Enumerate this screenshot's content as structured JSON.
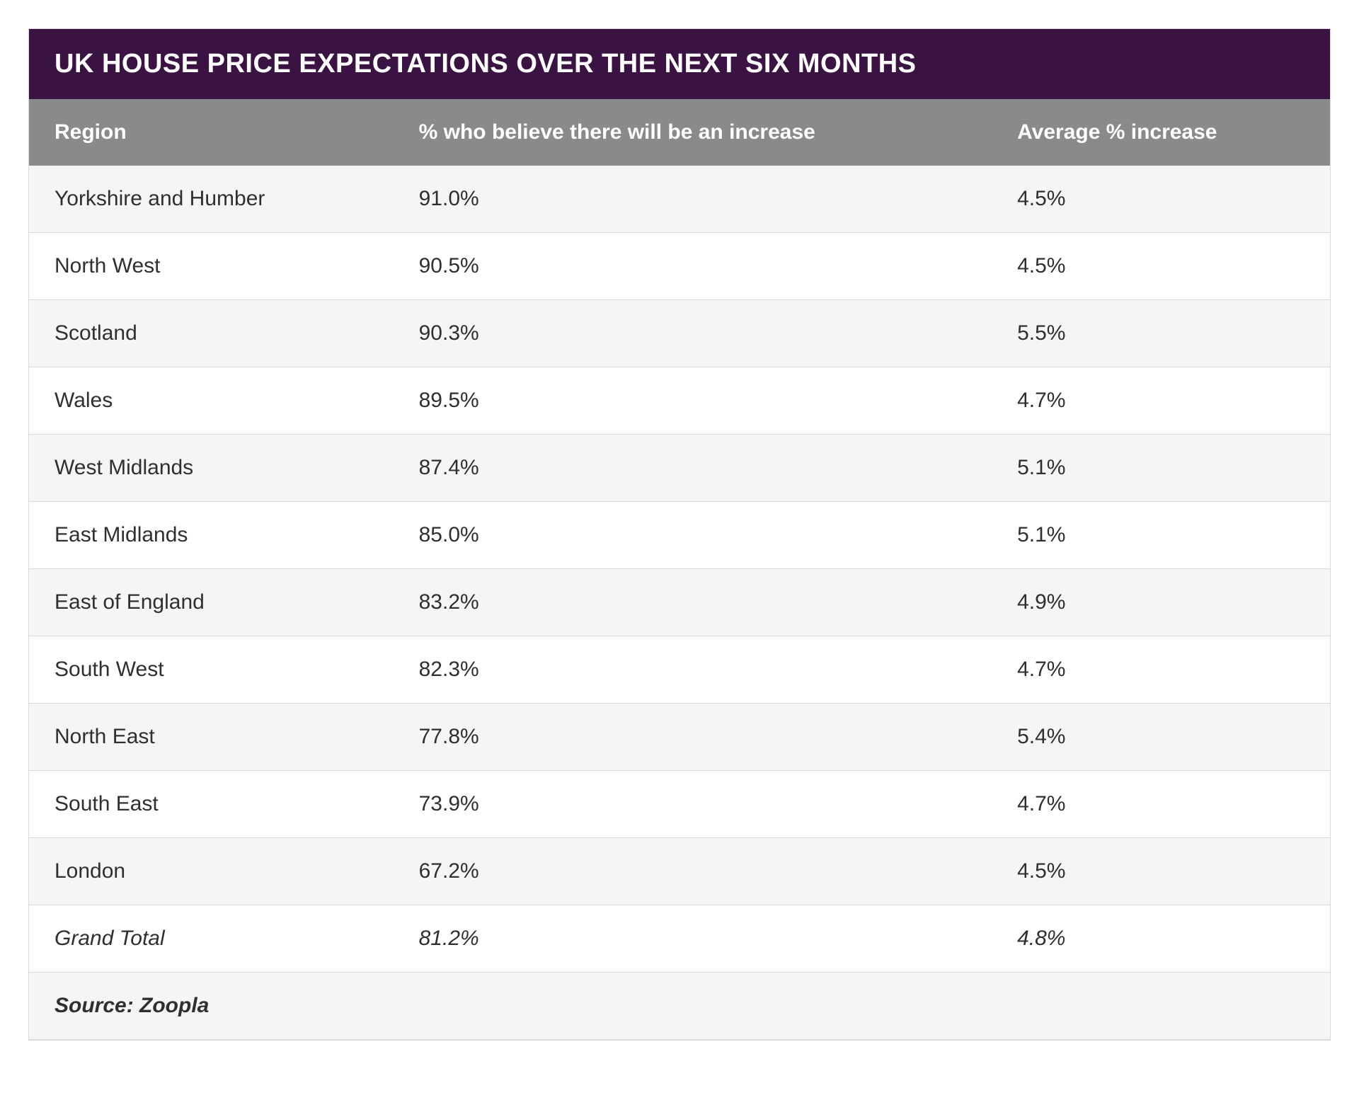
{
  "table": {
    "type": "table",
    "title": "UK HOUSE PRICE EXPECTATIONS  OVER THE NEXT SIX MONTHS",
    "title_bg_color": "#3a1342",
    "title_text_color": "#ffffff",
    "title_fontsize": 38,
    "header_bg_color": "#8a8a8a",
    "header_text_color": "#ffffff",
    "header_fontsize": 30,
    "row_fontsize": 30,
    "row_text_color": "#322e2f",
    "row_alt_bg_color": "#f5f5f5",
    "row_bg_color": "#ffffff",
    "border_color": "#d9d9d9",
    "columns": [
      {
        "key": "region",
        "label": "Region",
        "width_pct": 28
      },
      {
        "key": "believe",
        "label": "% who believe there will be an increase",
        "width_pct": 46
      },
      {
        "key": "avg",
        "label": "Average % increase",
        "width_pct": 26
      }
    ],
    "rows": [
      {
        "region": "Yorkshire and Humber",
        "believe": "91.0%",
        "avg": "4.5%"
      },
      {
        "region": "North West",
        "believe": "90.5%",
        "avg": "4.5%"
      },
      {
        "region": "Scotland",
        "believe": "90.3%",
        "avg": "5.5%"
      },
      {
        "region": "Wales",
        "believe": "89.5%",
        "avg": "4.7%"
      },
      {
        "region": "West Midlands",
        "believe": "87.4%",
        "avg": "5.1%"
      },
      {
        "region": "East Midlands",
        "believe": "85.0%",
        "avg": "5.1%"
      },
      {
        "region": "East of England",
        "believe": "83.2%",
        "avg": "4.9%"
      },
      {
        "region": "South West",
        "believe": "82.3%",
        "avg": "4.7%"
      },
      {
        "region": "North East",
        "believe": "77.8%",
        "avg": "5.4%"
      },
      {
        "region": "South East",
        "believe": "73.9%",
        "avg": "4.7%"
      },
      {
        "region": "London",
        "believe": "67.2%",
        "avg": "4.5%"
      }
    ],
    "total_row": {
      "region": "Grand Total",
      "believe": "81.2%",
      "avg": "4.8%"
    },
    "source_label": "Source: Zoopla"
  }
}
